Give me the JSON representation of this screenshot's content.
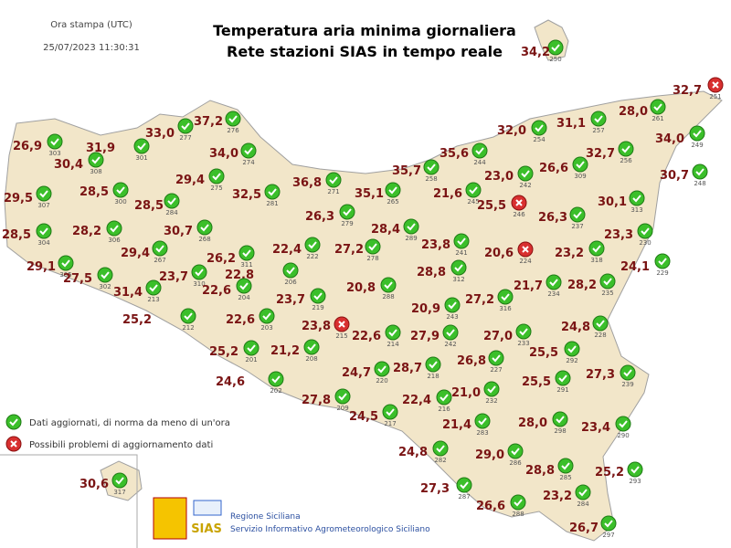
{
  "header": {
    "print_label": "Ora stampa (UTC)",
    "timestamp": "25/07/2023 11:30:31",
    "title": "Temperatura aria minima giornaliera",
    "subtitle": "Rete stazioni SIAS in tempo reale"
  },
  "stations": [
    {
      "temperature": "26,9",
      "id": "303",
      "status": "ok"
    },
    {
      "temperature": "30,4",
      "id": "308",
      "status": "ok"
    },
    {
      "temperature": "31,9",
      "id": "301",
      "status": "ok"
    },
    {
      "temperature": "33,0",
      "id": "277",
      "status": "ok"
    },
    {
      "temperature": "37,2",
      "id": "276",
      "status": "ok"
    },
    {
      "temperature": "34,0",
      "id": "274",
      "status": "ok"
    },
    {
      "temperature": "29,5",
      "id": "307",
      "status": "ok"
    },
    {
      "temperature": "28,5",
      "id": "300",
      "status": "ok"
    },
    {
      "temperature": "29,4",
      "id": "275",
      "status": "ok"
    },
    {
      "temperature": "28,5",
      "id": "284",
      "status": "ok"
    },
    {
      "temperature": "32,5",
      "id": "281",
      "status": "ok"
    },
    {
      "temperature": "36,8",
      "id": "271",
      "status": "ok"
    },
    {
      "temperature": "35,7",
      "id": "258",
      "status": "ok"
    },
    {
      "temperature": "35,6",
      "id": "244",
      "status": "ok"
    },
    {
      "temperature": "32,0",
      "id": "254",
      "status": "ok"
    },
    {
      "temperature": "31,1",
      "id": "257",
      "status": "ok"
    },
    {
      "temperature": "28,0",
      "id": "261",
      "status": "ok"
    },
    {
      "temperature": "32,7",
      "id": "251",
      "status": "problem"
    },
    {
      "temperature": "34,0",
      "id": "249",
      "status": "ok"
    },
    {
      "temperature": "32,7",
      "id": "256",
      "status": "ok"
    },
    {
      "temperature": "26,6",
      "id": "309",
      "status": "ok"
    },
    {
      "temperature": "23,0",
      "id": "242",
      "status": "ok"
    },
    {
      "temperature": "30,7",
      "id": "248",
      "status": "ok"
    },
    {
      "temperature": "35,1",
      "id": "265",
      "status": "ok"
    },
    {
      "temperature": "21,6",
      "id": "245",
      "status": "ok"
    },
    {
      "temperature": "25,5",
      "id": "246",
      "status": "problem"
    },
    {
      "temperature": "26,3",
      "id": "237",
      "status": "ok"
    },
    {
      "temperature": "30,1",
      "id": "313",
      "status": "ok"
    },
    {
      "temperature": "28,5",
      "id": "304",
      "status": "ok"
    },
    {
      "temperature": "28,2",
      "id": "306",
      "status": "ok"
    },
    {
      "temperature": "30,7",
      "id": "268",
      "status": "ok"
    },
    {
      "temperature": "26,3",
      "id": "279",
      "status": "ok"
    },
    {
      "temperature": "28,4",
      "id": "289",
      "status": "ok"
    },
    {
      "temperature": "23,3",
      "id": "230",
      "status": "ok"
    },
    {
      "temperature": "29,1",
      "id": "305",
      "status": "ok"
    },
    {
      "temperature": "27,5",
      "id": "302",
      "status": "ok"
    },
    {
      "temperature": "29,4",
      "id": "267",
      "status": "ok"
    },
    {
      "temperature": "26,2",
      "id": "311",
      "status": "ok"
    },
    {
      "temperature": "22,4",
      "id": "222",
      "status": "ok"
    },
    {
      "temperature": "27,2",
      "id": "278",
      "status": "ok"
    },
    {
      "temperature": "23,8",
      "id": "241",
      "status": "ok"
    },
    {
      "temperature": "20,6",
      "id": "224",
      "status": "problem"
    },
    {
      "temperature": "23,2",
      "id": "318",
      "status": "ok"
    },
    {
      "temperature": "24,1",
      "id": "229",
      "status": "ok"
    },
    {
      "temperature": "23,7",
      "id": "310",
      "status": "ok"
    },
    {
      "temperature": "22,8",
      "id": "206",
      "status": "ok"
    },
    {
      "temperature": "28,8",
      "id": "312",
      "status": "ok"
    },
    {
      "temperature": "31,4",
      "id": "213",
      "status": "ok"
    },
    {
      "temperature": "22,6",
      "id": "204",
      "status": "ok"
    },
    {
      "temperature": "20,8",
      "id": "288",
      "status": "ok"
    },
    {
      "temperature": "21,7",
      "id": "234",
      "status": "ok"
    },
    {
      "temperature": "28,2",
      "id": "235",
      "status": "ok"
    },
    {
      "temperature": "23,7",
      "id": "219",
      "status": "ok"
    },
    {
      "temperature": "27,2",
      "id": "316",
      "status": "ok"
    },
    {
      "temperature": "20,9",
      "id": "243",
      "status": "ok"
    },
    {
      "temperature": "25,2",
      "id": "212",
      "status": "ok"
    },
    {
      "temperature": "22,6",
      "id": "203",
      "status": "ok"
    },
    {
      "temperature": "23,8",
      "id": "215",
      "status": "problem"
    },
    {
      "temperature": "22,6",
      "id": "214",
      "status": "ok"
    },
    {
      "temperature": "27,9",
      "id": "242",
      "status": "ok"
    },
    {
      "temperature": "27,0",
      "id": "233",
      "status": "ok"
    },
    {
      "temperature": "24,8",
      "id": "228",
      "status": "ok"
    },
    {
      "temperature": "25,2",
      "id": "201",
      "status": "ok"
    },
    {
      "temperature": "21,2",
      "id": "208",
      "status": "ok"
    },
    {
      "temperature": "25,5",
      "id": "292",
      "status": "ok"
    },
    {
      "temperature": "26,8",
      "id": "227",
      "status": "ok"
    },
    {
      "temperature": "24,7",
      "id": "220",
      "status": "ok"
    },
    {
      "temperature": "28,7",
      "id": "218",
      "status": "ok"
    },
    {
      "temperature": "27,3",
      "id": "239",
      "status": "ok"
    },
    {
      "temperature": "25,5",
      "id": "291",
      "status": "ok"
    },
    {
      "temperature": "24,6",
      "id": "202",
      "status": "ok"
    },
    {
      "temperature": "21,0",
      "id": "232",
      "status": "ok"
    },
    {
      "temperature": "27,8",
      "id": "209",
      "status": "ok"
    },
    {
      "temperature": "22,4",
      "id": "216",
      "status": "ok"
    },
    {
      "temperature": "24,5",
      "id": "217",
      "status": "ok"
    },
    {
      "temperature": "21,4",
      "id": "283",
      "status": "ok"
    },
    {
      "temperature": "28,0",
      "id": "298",
      "status": "ok"
    },
    {
      "temperature": "23,4",
      "id": "290",
      "status": "ok"
    },
    {
      "temperature": "24,8",
      "id": "282",
      "status": "ok"
    },
    {
      "temperature": "29,0",
      "id": "286",
      "status": "ok"
    },
    {
      "temperature": "28,8",
      "id": "285",
      "status": "ok"
    },
    {
      "temperature": "25,2",
      "id": "293",
      "status": "ok"
    },
    {
      "temperature": "27,3",
      "id": "287",
      "status": "ok"
    },
    {
      "temperature": "23,2",
      "id": "284",
      "status": "ok"
    },
    {
      "temperature": "26,6",
      "id": "288",
      "status": "ok"
    },
    {
      "temperature": "26,7",
      "id": "297",
      "status": "ok"
    },
    {
      "temperature": "30,6",
      "id": "317",
      "status": "ok"
    },
    {
      "temperature": "34,2",
      "id": "250",
      "status": "ok"
    }
  ],
  "legend": [
    {
      "status": "ok",
      "label": "Dati aggiornati, di norma da meno di un'ora"
    },
    {
      "status": "problem",
      "label": "Possibili problemi di aggiornamento dati"
    }
  ],
  "footer": {
    "logo_text": "SIAS",
    "organization": "Regione Siciliana",
    "service": "Servizio Informativo Agrometeorologico Siciliano"
  }
}
